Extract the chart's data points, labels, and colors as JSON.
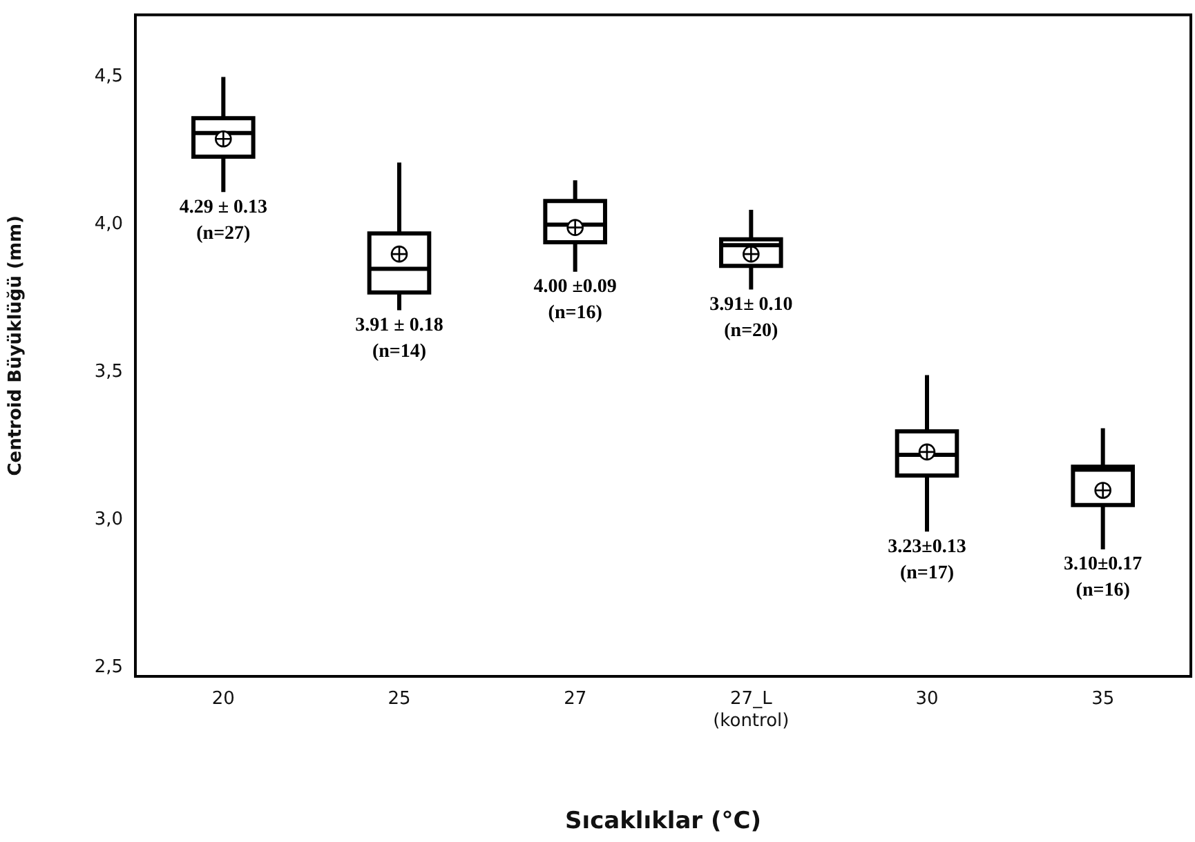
{
  "chart_data": {
    "type": "box",
    "xlabel": "Sıcaklıklar (°C)",
    "ylabel": "Centroid Büyüklüğü (mm)",
    "color": "#000000",
    "categories": [
      "20",
      "25",
      "27",
      "27_L\n(kontrol)",
      "30",
      "35"
    ],
    "boxes": [
      {
        "low": 4.11,
        "q1": 4.23,
        "median": 4.31,
        "q3": 4.36,
        "high": 4.5,
        "mean": 4.29
      },
      {
        "low": 3.71,
        "q1": 3.77,
        "median": 3.85,
        "q3": 3.97,
        "high": 4.21,
        "mean": 3.9
      },
      {
        "low": 3.84,
        "q1": 3.94,
        "median": 4.0,
        "q3": 4.08,
        "high": 4.15,
        "mean": 3.99
      },
      {
        "low": 3.78,
        "q1": 3.86,
        "median": 3.93,
        "q3": 3.95,
        "high": 4.05,
        "mean": 3.9
      },
      {
        "low": 2.96,
        "q1": 3.15,
        "median": 3.22,
        "q3": 3.3,
        "high": 3.49,
        "mean": 3.23
      },
      {
        "low": 2.9,
        "q1": 3.05,
        "median": 3.17,
        "q3": 3.18,
        "high": 3.31,
        "mean": 3.1
      }
    ],
    "ylim": [
      2.47,
      4.71
    ],
    "yticks": [
      {
        "value": 2.5,
        "label": "2,5"
      },
      {
        "value": 3.0,
        "label": "3,0"
      },
      {
        "value": 3.5,
        "label": "3,5"
      },
      {
        "value": 4.0,
        "label": "4,0"
      },
      {
        "value": 4.5,
        "label": "4,5"
      }
    ],
    "annotations": [
      {
        "text": "4.29 ± 0.13\n(n=27)",
        "x": "20",
        "y": 4.11
      },
      {
        "text": "3.91 ± 0.18\n(n=14)",
        "x": "25",
        "y": 3.71
      },
      {
        "text": "4.00 ±0.09\n(n=16)",
        "x": "27",
        "y": 3.84
      },
      {
        "text": "3.91± 0.10\n(n=20)",
        "x": "27_L\n(kontrol)",
        "y": 3.78
      },
      {
        "text": "3.23±0.13\n(n=17)",
        "x": "30",
        "y": 2.96
      },
      {
        "text": "3.10±0.17\n(n=16)",
        "x": "35",
        "y": 2.9
      }
    ]
  }
}
